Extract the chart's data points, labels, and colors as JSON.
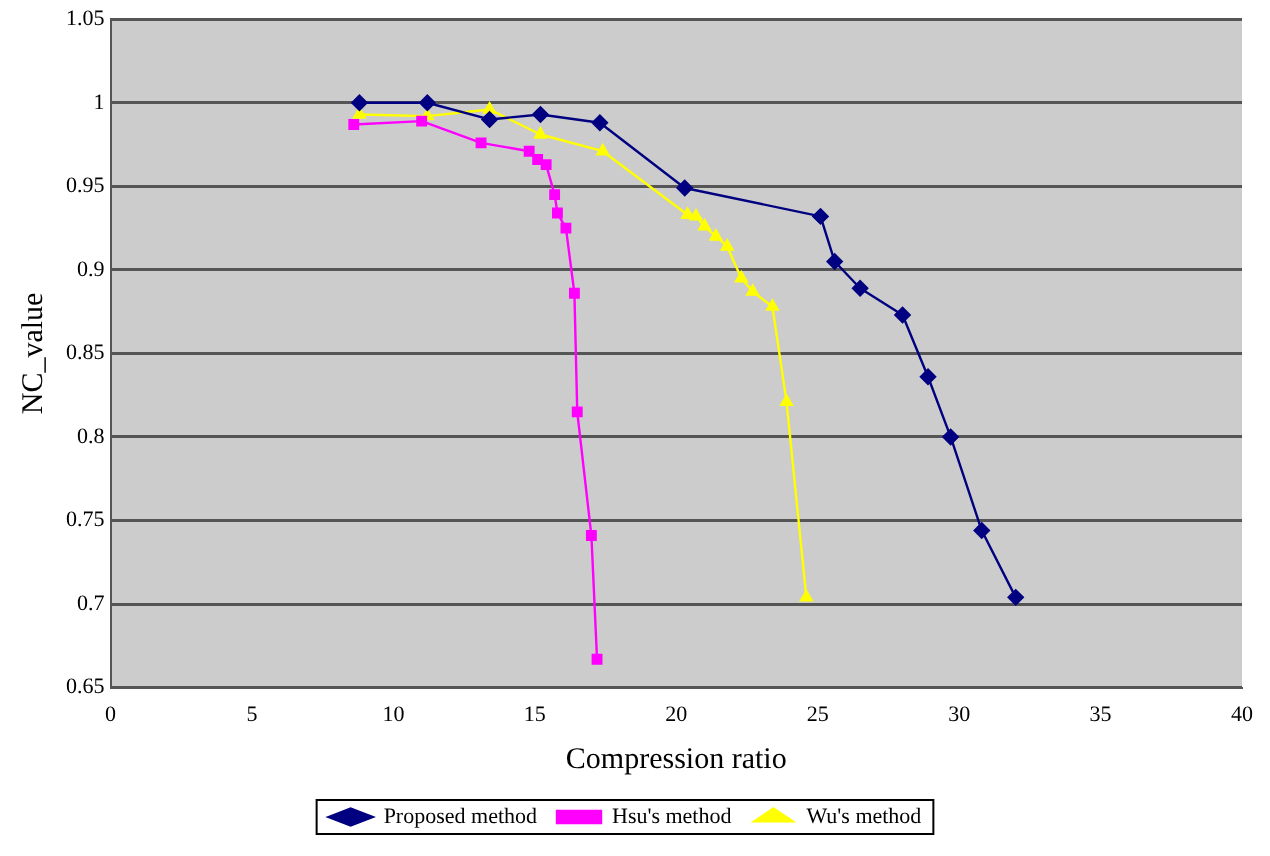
{
  "chart_data": {
    "type": "line",
    "xlabel": "Compression ratio",
    "ylabel": "NC_value",
    "xlim": [
      0,
      40
    ],
    "xticks": [
      0,
      5,
      10,
      15,
      20,
      25,
      30,
      35,
      40
    ],
    "ylim": [
      0.65,
      1.05
    ],
    "yticks": [
      0.65,
      0.7,
      0.75,
      0.8,
      0.85,
      0.9,
      0.95,
      1,
      1.05
    ],
    "grid": "y",
    "legend": "bottom",
    "series": [
      {
        "name": "Proposed method",
        "color": "#000080",
        "marker": "diamond",
        "x": [
          8.8,
          11.2,
          13.4,
          15.2,
          17.3,
          20.3,
          25.1,
          25.6,
          26.5,
          28.0,
          28.9,
          29.7,
          30.8,
          32.0
        ],
        "values": [
          1.0,
          1.0,
          0.99,
          0.993,
          0.988,
          0.949,
          0.932,
          0.905,
          0.889,
          0.873,
          0.836,
          0.8,
          0.744,
          0.704
        ]
      },
      {
        "name": "Hsu's method",
        "color": "#ff00ff",
        "marker": "square",
        "x": [
          8.6,
          11.0,
          13.1,
          14.8,
          15.1,
          15.4,
          15.7,
          15.8,
          16.1,
          16.4,
          16.5,
          17.0,
          17.2
        ],
        "values": [
          0.987,
          0.989,
          0.976,
          0.971,
          0.966,
          0.963,
          0.945,
          0.934,
          0.925,
          0.886,
          0.815,
          0.741,
          0.667
        ]
      },
      {
        "name": "Wu's method",
        "color": "#ffff00",
        "marker": "triangle",
        "x": [
          8.8,
          11.2,
          13.4,
          15.2,
          17.4,
          20.4,
          20.7,
          21.0,
          21.4,
          21.8,
          22.3,
          22.7,
          23.4,
          23.9,
          24.6
        ],
        "values": [
          0.993,
          0.992,
          0.996,
          0.981,
          0.971,
          0.933,
          0.932,
          0.926,
          0.92,
          0.914,
          0.895,
          0.887,
          0.878,
          0.821,
          0.704
        ]
      }
    ]
  }
}
